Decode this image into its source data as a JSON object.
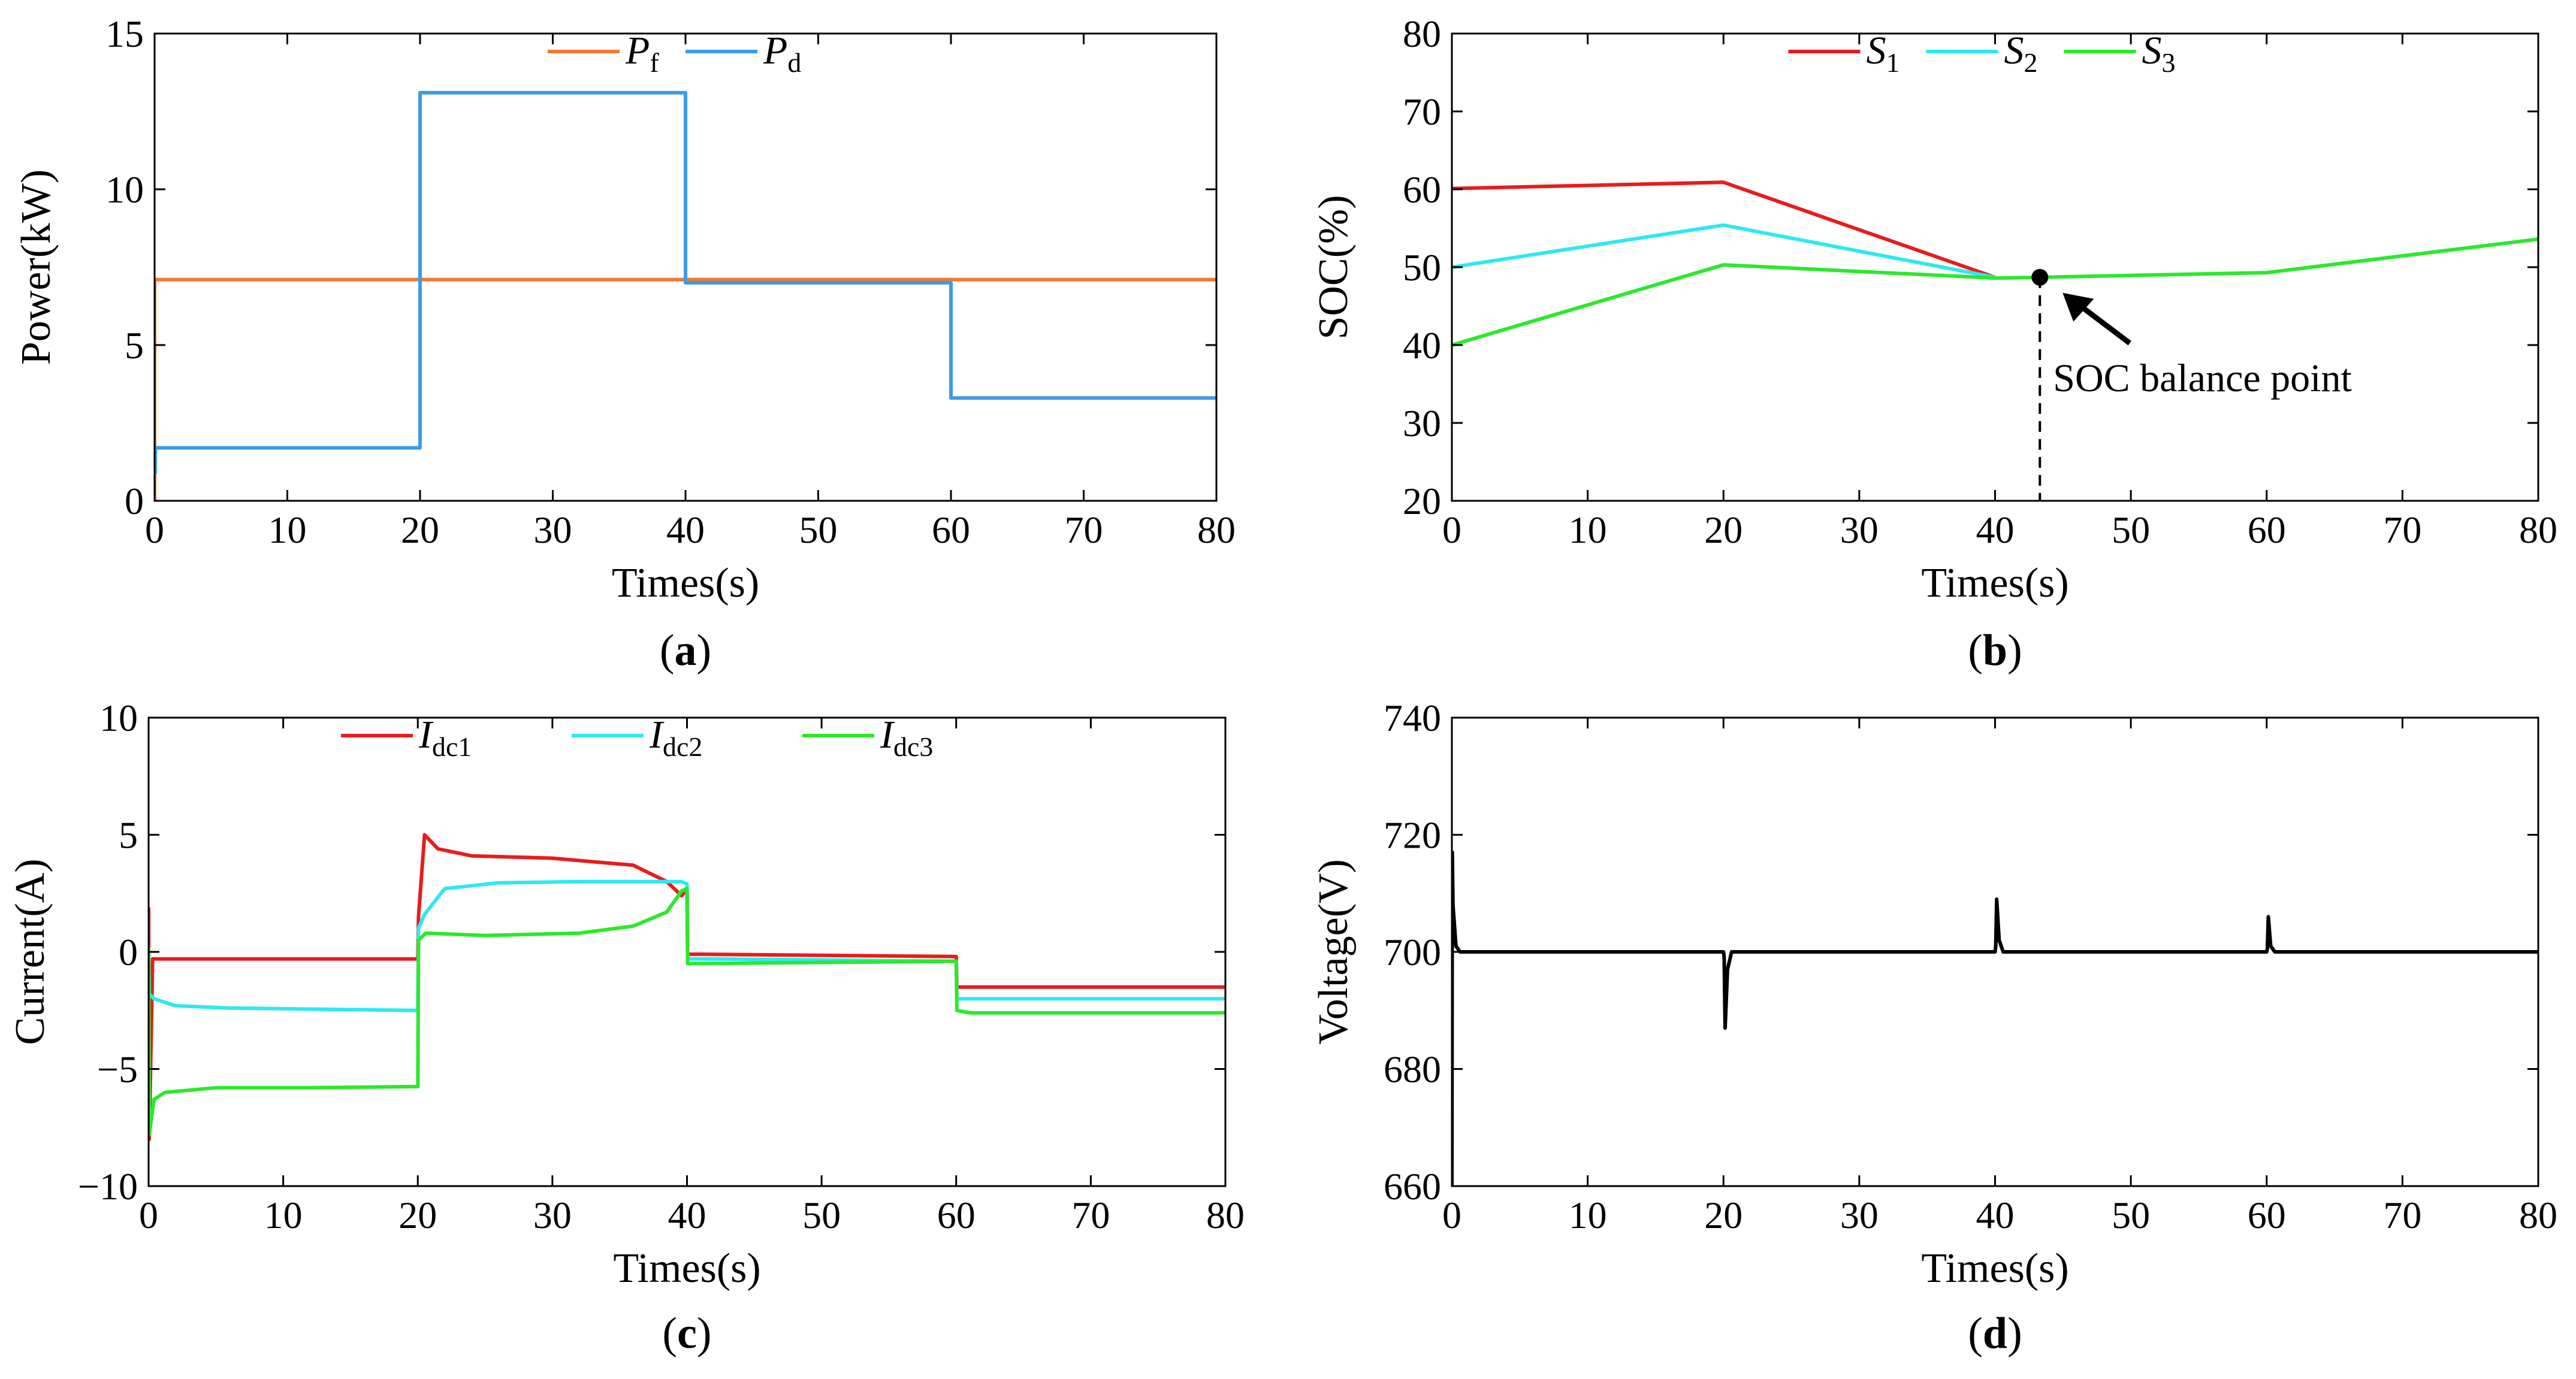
{
  "chart_data": [
    {
      "id": "a",
      "type": "line",
      "caption": "(a)",
      "xlabel": "Times(s)",
      "ylabel": "Power(kW)",
      "xlim": [
        0,
        80
      ],
      "ylim": [
        0,
        15
      ],
      "xticks": [
        0,
        10,
        20,
        30,
        40,
        50,
        60,
        70,
        80
      ],
      "yticks": [
        0,
        5,
        10,
        15
      ],
      "grid": false,
      "legend_placement": "top-center",
      "series": [
        {
          "name": "P",
          "sub": "f",
          "color": "#f07834",
          "x": [
            0,
            0,
            0.05,
            80
          ],
          "y": [
            0,
            7.1,
            7.1,
            7.1
          ]
        },
        {
          "name": "P",
          "sub": "d",
          "color": "#3c9be8",
          "x": [
            0,
            0.05,
            0.05,
            20,
            20,
            40,
            40,
            60,
            60,
            80
          ],
          "y": [
            0.9,
            0.9,
            1.7,
            1.7,
            13.1,
            13.1,
            7.0,
            7.0,
            3.3,
            3.3
          ]
        }
      ]
    },
    {
      "id": "b",
      "type": "line",
      "caption": "(b)",
      "xlabel": "Times(s)",
      "ylabel": "SOC(%)",
      "xlim": [
        0,
        80
      ],
      "ylim": [
        20,
        80
      ],
      "xticks": [
        0,
        10,
        20,
        30,
        40,
        50,
        60,
        70,
        80
      ],
      "yticks": [
        20,
        30,
        40,
        50,
        60,
        70,
        80
      ],
      "grid": false,
      "legend_placement": "top-center",
      "series": [
        {
          "name": "S",
          "sub": "1",
          "color": "#e81c1c",
          "x": [
            0,
            20,
            40
          ],
          "y": [
            60.1,
            60.9,
            48.7
          ]
        },
        {
          "name": "S",
          "sub": "2",
          "color": "#2ee8f2",
          "x": [
            0,
            20,
            40
          ],
          "y": [
            50.0,
            55.4,
            48.7
          ]
        },
        {
          "name": "S",
          "sub": "3",
          "color": "#2ce82c",
          "x": [
            0,
            20,
            40,
            43.3,
            60,
            80
          ],
          "y": [
            40.0,
            50.3,
            48.6,
            48.7,
            49.3,
            53.6
          ]
        }
      ],
      "annotation": {
        "text": "SOC balance point",
        "x": 43.3,
        "y": 48.7
      }
    },
    {
      "id": "c",
      "type": "line",
      "caption": "(c)",
      "xlabel": "Times(s)",
      "ylabel": "Current(A)",
      "xlim": [
        0,
        80
      ],
      "ylim": [
        -10,
        10
      ],
      "xticks": [
        0,
        10,
        20,
        30,
        40,
        50,
        60,
        70,
        80
      ],
      "yticks": [
        -10,
        -5,
        0,
        5,
        10
      ],
      "grid": false,
      "legend_placement": "top-center",
      "series": [
        {
          "name": "I",
          "sub": "dc1",
          "color": "#e81c1c",
          "x": [
            0,
            0.05,
            0.3,
            20,
            20.05,
            20.5,
            21.5,
            24,
            30,
            36,
            38.5,
            39.6,
            40,
            40.05,
            41,
            60,
            60.05,
            61,
            80
          ],
          "y": [
            1.9,
            -8.0,
            -0.3,
            -0.3,
            1.5,
            5.0,
            4.4,
            4.1,
            4.0,
            3.7,
            3.0,
            2.4,
            2.7,
            -0.1,
            -0.1,
            -0.2,
            -1.5,
            -1.5,
            -1.5
          ]
        },
        {
          "name": "I",
          "sub": "dc2",
          "color": "#2ee8f2",
          "x": [
            0,
            0.05,
            0.4,
            2,
            6,
            20,
            20.05,
            20.5,
            22,
            26,
            32,
            38,
            39.6,
            40,
            40.05,
            41,
            60,
            60.05,
            61,
            80
          ],
          "y": [
            0.2,
            -1.8,
            -2.0,
            -2.3,
            -2.4,
            -2.5,
            1.0,
            1.6,
            2.7,
            2.95,
            3.0,
            3.0,
            3.0,
            2.9,
            -0.3,
            -0.3,
            -0.4,
            -2.0,
            -2.0,
            -2.0
          ]
        },
        {
          "name": "I",
          "sub": "dc3",
          "color": "#2ce82c",
          "x": [
            0,
            0.05,
            0.4,
            1.2,
            5,
            12,
            20,
            20.05,
            20.6,
            25,
            32,
            36,
            38.5,
            39.6,
            40,
            40.05,
            40.8,
            60,
            60.05,
            61,
            80
          ],
          "y": [
            0.2,
            -7.8,
            -6.3,
            -6.0,
            -5.8,
            -5.8,
            -5.75,
            0.5,
            0.8,
            0.7,
            0.8,
            1.1,
            1.7,
            2.6,
            2.7,
            -0.5,
            -0.5,
            -0.4,
            -2.5,
            -2.6,
            -2.6
          ]
        }
      ]
    },
    {
      "id": "d",
      "type": "line",
      "caption": "(d)",
      "xlabel": "Times(s)",
      "ylabel": "Voltage(V)",
      "xlim": [
        0,
        80
      ],
      "ylim": [
        660,
        740
      ],
      "xticks": [
        0,
        10,
        20,
        30,
        40,
        50,
        60,
        70,
        80
      ],
      "yticks": [
        660,
        680,
        700,
        720,
        740
      ],
      "grid": false,
      "series": [
        {
          "name": "",
          "color": "#000000",
          "x": [
            0,
            0.03,
            0.08,
            0.3,
            0.6,
            20,
            20.05,
            20.12,
            20.3,
            20.6,
            40,
            40.05,
            40.12,
            40.3,
            40.6,
            60,
            60.05,
            60.12,
            60.3,
            60.6,
            80
          ],
          "y": [
            660,
            717,
            708,
            701,
            700,
            700,
            699,
            687,
            697,
            700,
            700,
            701,
            709,
            702,
            700,
            700,
            700.5,
            706,
            701,
            700,
            700
          ]
        }
      ]
    }
  ]
}
